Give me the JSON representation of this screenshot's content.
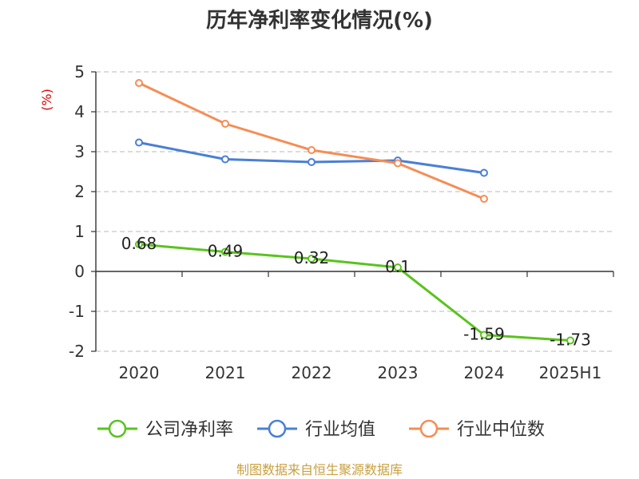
{
  "chart_data": {
    "type": "line",
    "title": "历年净利率变化情况(%)",
    "ylabel": "(%)",
    "categories": [
      "2020",
      "2021",
      "2022",
      "2023",
      "2024",
      "2025H1"
    ],
    "ylim": [
      -2,
      5
    ],
    "yticks": [
      5,
      4,
      3,
      2,
      1,
      0,
      -1,
      -2
    ],
    "grid": true,
    "legend_position": "bottom",
    "series": [
      {
        "name": "公司净利率",
        "color": "#5ac31e",
        "values": [
          0.68,
          0.49,
          0.32,
          0.1,
          -1.59,
          -1.73
        ],
        "labels": [
          "0.68",
          "0.49",
          "0.32",
          "0.1",
          "-1.59",
          "-1.73"
        ]
      },
      {
        "name": "行业均值",
        "color": "#4a7fd6",
        "values": [
          3.23,
          2.81,
          2.74,
          2.78,
          2.47,
          null
        ]
      },
      {
        "name": "行业中位数",
        "color": "#f58d55",
        "values": [
          4.72,
          3.7,
          3.04,
          2.71,
          1.82,
          null
        ]
      }
    ]
  },
  "footer": {
    "source": "制图数据来自恒生聚源数据库"
  }
}
